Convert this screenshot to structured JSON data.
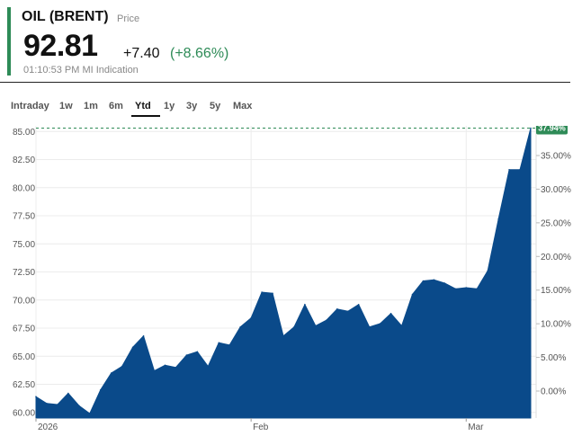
{
  "quote": {
    "name": "OIL (BRENT)",
    "type_label": "Price",
    "price": "92.81",
    "change": "+7.40",
    "change_pct": "(+8.66%)",
    "time": "01:10:53 PM",
    "source": "MI Indication",
    "accent_color": "#2e8b57"
  },
  "range_tabs": [
    {
      "label": "Intraday",
      "active": false
    },
    {
      "label": "1w",
      "active": false
    },
    {
      "label": "1m",
      "active": false
    },
    {
      "label": "6m",
      "active": false
    },
    {
      "label": "Ytd",
      "active": true
    },
    {
      "label": "1y",
      "active": false
    },
    {
      "label": "3y",
      "active": false
    },
    {
      "label": "5y",
      "active": false
    },
    {
      "label": "Max",
      "active": false
    }
  ],
  "chart_data": {
    "type": "area",
    "color": "#0a4a8a",
    "badge_color": "#2e8b57",
    "badge_label": "37.94%",
    "last_reference_value": 85.3,
    "left_axis": {
      "ticks": [
        "85.00",
        "82.50",
        "80.00",
        "77.50",
        "75.00",
        "72.50",
        "70.00",
        "67.50",
        "65.00",
        "62.50",
        "60.00"
      ],
      "range": [
        59.5,
        85.5
      ]
    },
    "right_axis": {
      "ticks": [
        "35.00%",
        "30.00%",
        "25.00%",
        "20.00%",
        "15.00%",
        "10.00%",
        "5.00%",
        "0.00%"
      ]
    },
    "x_ticks": [
      {
        "label": "2026",
        "index": 0
      },
      {
        "label": "Feb",
        "index": 20
      },
      {
        "label": "Mar",
        "index": 40
      }
    ],
    "values": [
      61.4,
      60.8,
      60.7,
      61.7,
      60.6,
      59.9,
      62.0,
      63.5,
      64.1,
      65.8,
      66.8,
      63.7,
      64.2,
      64.0,
      65.1,
      65.4,
      64.1,
      66.2,
      66.0,
      67.6,
      68.4,
      70.7,
      70.6,
      66.8,
      67.6,
      69.6,
      67.7,
      68.2,
      69.2,
      69.0,
      69.6,
      67.6,
      67.9,
      68.8,
      67.7,
      70.5,
      71.7,
      71.8,
      71.5,
      71.0,
      71.1,
      71.0,
      72.6,
      77.2,
      81.6,
      81.6,
      85.3
    ]
  }
}
